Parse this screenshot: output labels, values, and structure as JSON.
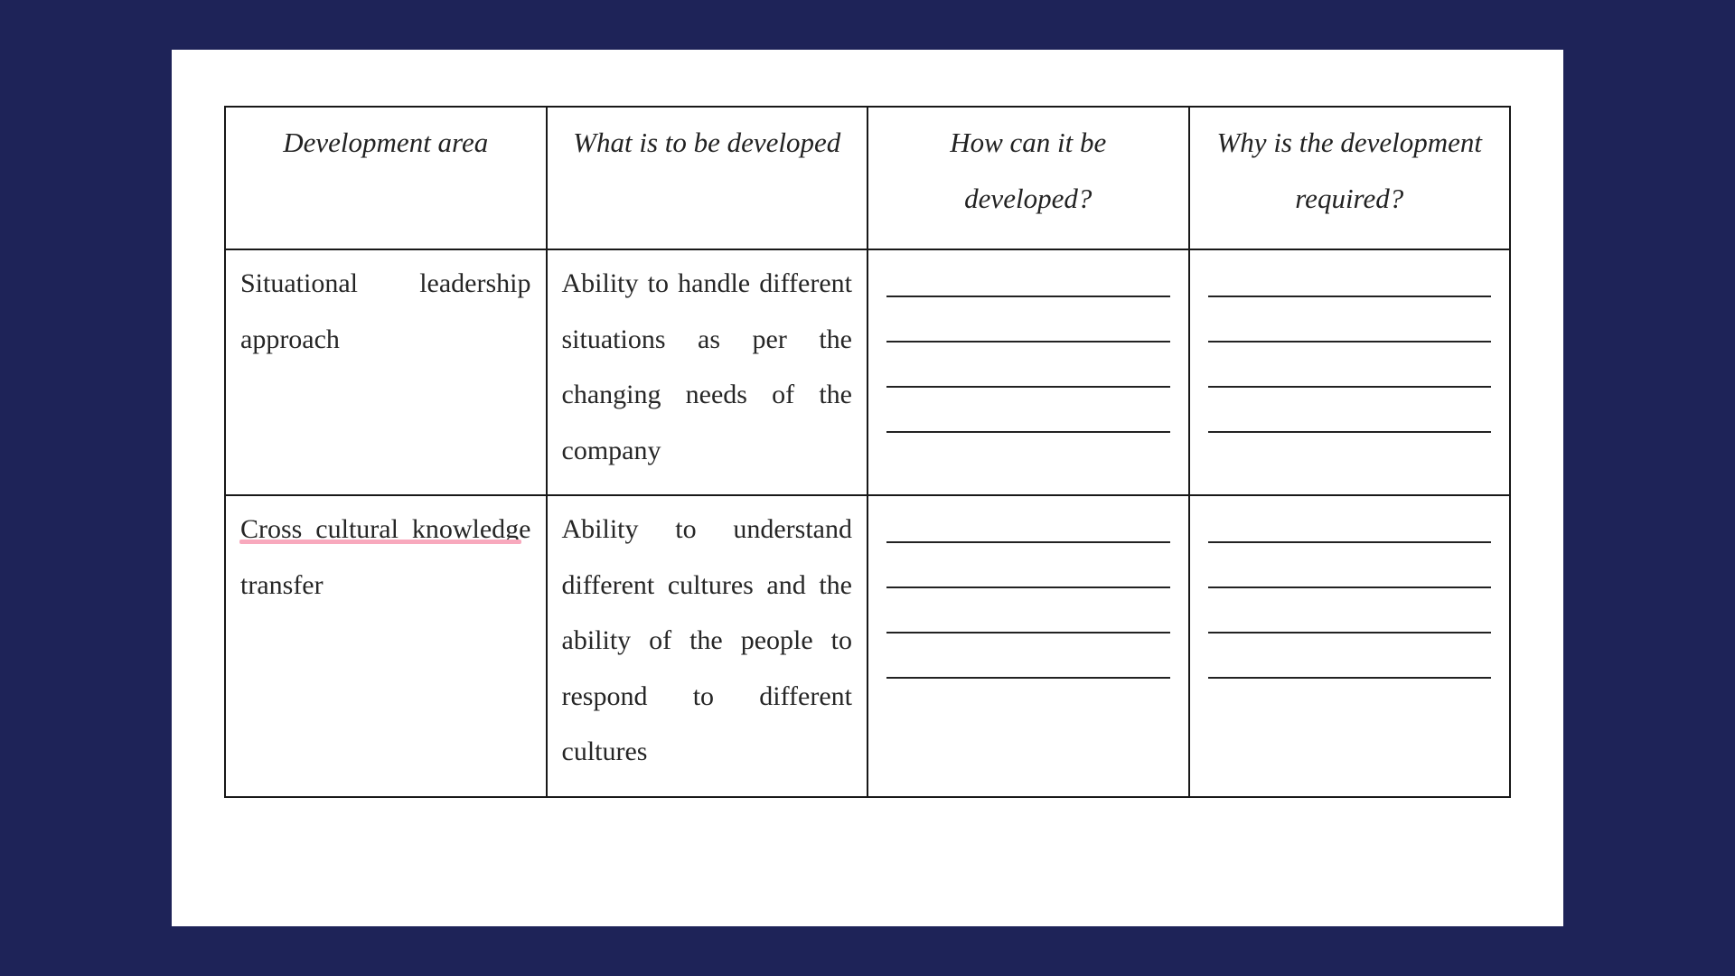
{
  "page_background_color": "#1e2358",
  "paper_background_color": "#ffffff",
  "border_color": "#181818",
  "highlight_color": "#f8a9bd",
  "text_color": "#262626",
  "header_font_style": "italic",
  "font_family": "Georgia, Times New Roman, serif",
  "table": {
    "type": "table",
    "columns": [
      "Development area",
      "What is to be developed",
      "How can it be developed?",
      "Why is the development required?"
    ],
    "rows": [
      {
        "area": "Situational leadership approach",
        "what": "Ability to handle different situations as per the changing needs of the company",
        "how_blank_lines": 4,
        "why_blank_lines": 4,
        "highlight": false
      },
      {
        "area": "Cross cultural knowledge transfer",
        "what": "Ability to understand different cultures and the ability of the people to respond to different cultures",
        "how_blank_lines": 4,
        "why_blank_lines": 4,
        "highlight": true
      }
    ]
  }
}
